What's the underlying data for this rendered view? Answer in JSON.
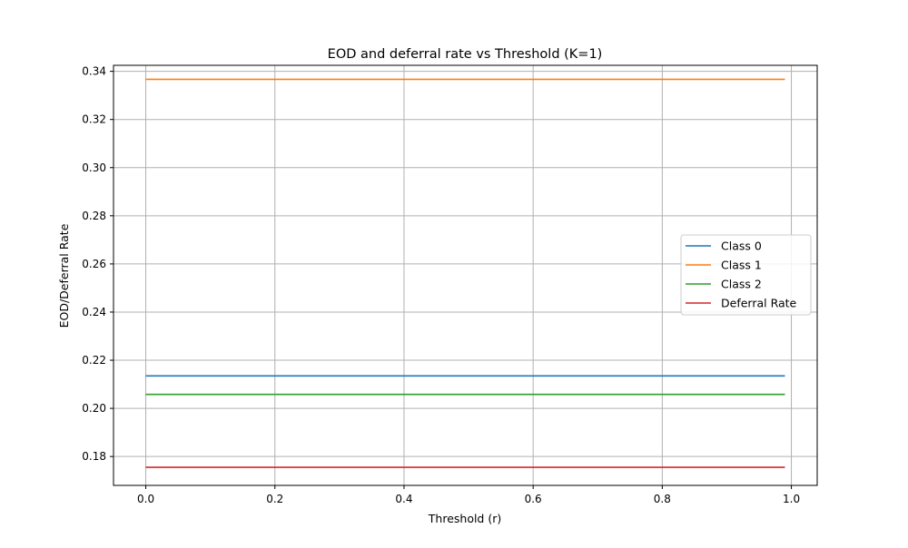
{
  "chart_data": {
    "type": "line",
    "title": "EOD and deferral rate vs Threshold (K=1)",
    "xlabel": "Threshold (r)",
    "ylabel": "EOD/Deferral Rate",
    "xlim": [
      -0.05,
      1.04
    ],
    "ylim": [
      0.168,
      0.3425
    ],
    "x": [
      0.0,
      0.99
    ],
    "xticks": [
      0.0,
      0.2,
      0.4,
      0.6,
      0.8,
      1.0
    ],
    "xtick_labels": [
      "0.0",
      "0.2",
      "0.4",
      "0.6",
      "0.8",
      "1.0"
    ],
    "yticks": [
      0.18,
      0.2,
      0.22,
      0.24,
      0.26,
      0.28,
      0.3,
      0.32,
      0.34
    ],
    "ytick_labels": [
      "0.18",
      "0.20",
      "0.22",
      "0.24",
      "0.26",
      "0.28",
      "0.30",
      "0.32",
      "0.34"
    ],
    "grid": true,
    "legend_position": "center-right",
    "series": [
      {
        "name": "Class 0",
        "color": "#1f77b4",
        "values": [
          0.2135,
          0.2135
        ]
      },
      {
        "name": "Class 1",
        "color": "#ff7f0e",
        "values": [
          0.3367,
          0.3367
        ]
      },
      {
        "name": "Class 2",
        "color": "#2ca02c",
        "values": [
          0.2058,
          0.2058
        ]
      },
      {
        "name": "Deferral Rate",
        "color": "#d62728",
        "values": [
          0.1755,
          0.1755
        ]
      }
    ]
  }
}
